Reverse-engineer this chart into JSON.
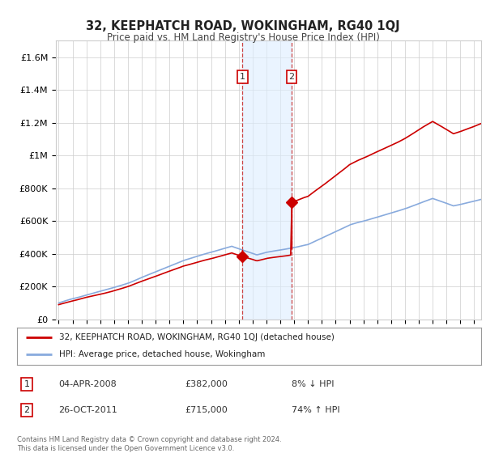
{
  "title": "32, KEEPHATCH ROAD, WOKINGHAM, RG40 1QJ",
  "subtitle": "Price paid vs. HM Land Registry's House Price Index (HPI)",
  "background_color": "#ffffff",
  "grid_color": "#cccccc",
  "transactions": [
    {
      "label": "1",
      "date": "04-APR-2008",
      "price": 382000,
      "hpi_pct": "8% ↓ HPI",
      "year": 2008.27
    },
    {
      "label": "2",
      "date": "26-OCT-2011",
      "price": 715000,
      "hpi_pct": "74% ↑ HPI",
      "year": 2011.82
    }
  ],
  "legend_entries": [
    {
      "label": "32, KEEPHATCH ROAD, WOKINGHAM, RG40 1QJ (detached house)",
      "color": "#cc0000",
      "lw": 1.2
    },
    {
      "label": "HPI: Average price, detached house, Wokingham",
      "color": "#88aadd",
      "lw": 1.2
    }
  ],
  "footnote": "Contains HM Land Registry data © Crown copyright and database right 2024.\nThis data is licensed under the Open Government Licence v3.0.",
  "ylim": [
    0,
    1700000
  ],
  "yticks": [
    0,
    200000,
    400000,
    600000,
    800000,
    1000000,
    1200000,
    1400000,
    1600000
  ],
  "ytick_labels": [
    "£0",
    "£200K",
    "£400K",
    "£600K",
    "£800K",
    "£1M",
    "£1.2M",
    "£1.4M",
    "£1.6M"
  ],
  "shade_color": "#ddeeff",
  "shade_alpha": 0.6,
  "shade_border_color": "#cc4444",
  "shade_border_style": "--",
  "shade_border_lw": 0.9,
  "xlim_left": 1994.8,
  "xlim_right": 2025.5
}
